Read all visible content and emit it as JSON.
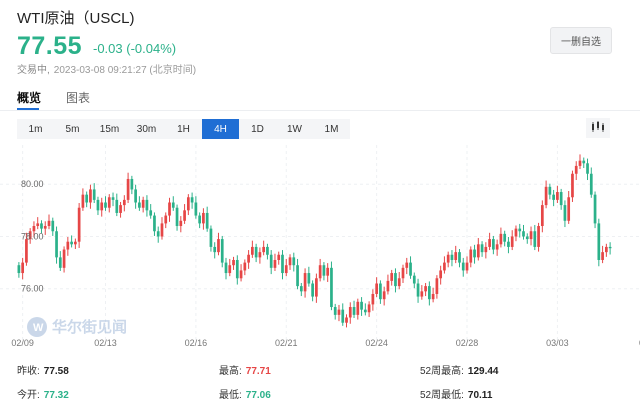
{
  "header": {
    "title": "WTI原油（USCL)",
    "price": "77.55",
    "change": "-0.03",
    "change_pct": "(-0.04%)",
    "status": "交易中,",
    "timestamp": "2023-03-08 09:21:27 (北京时间)",
    "remove_label": "一删自选"
  },
  "tabs": [
    {
      "label": "概览"
    },
    {
      "label": "图表"
    }
  ],
  "periods": [
    "1m",
    "5m",
    "15m",
    "30m",
    "1H",
    "4H",
    "1D",
    "1W",
    "1M"
  ],
  "active_period": "4H",
  "icons": {
    "chart_type": "candlestick-icon",
    "watermark": "wallstreetcn-logo"
  },
  "watermark": {
    "text": "华尔街见闻"
  },
  "colors": {
    "up": "#e64646",
    "down": "#2bb18a",
    "accent": "#1f6ed4"
  },
  "chart_data": {
    "type": "candlestick",
    "y_ticks": [
      "80.00",
      "78.00",
      "76.00"
    ],
    "y_tick_values": [
      80,
      78,
      76
    ],
    "ylim": [
      74.0,
      81.5
    ],
    "x_ticks": [
      "02/09",
      "02/13",
      "02/16",
      "02/21",
      "02/24",
      "02/28",
      "03/03",
      "03/0"
    ],
    "x_tick_index": [
      1,
      23,
      47,
      71,
      95,
      119,
      143,
      167
    ],
    "grid": true,
    "closes": [
      76.6,
      77.0,
      77.9,
      78.2,
      78.4,
      78.5,
      78.3,
      78.4,
      78.6,
      78.2,
      77.2,
      76.8,
      77.5,
      77.8,
      77.7,
      77.8,
      79.1,
      79.6,
      79.3,
      79.8,
      79.4,
      79.0,
      79.3,
      79.1,
      79.5,
      79.4,
      78.9,
      79.2,
      79.4,
      80.2,
      79.8,
      79.3,
      79.1,
      79.4,
      79.0,
      78.8,
      78.2,
      78.0,
      78.5,
      78.8,
      79.3,
      79.1,
      78.4,
      78.6,
      79.0,
      79.5,
      79.3,
      78.8,
      78.5,
      78.9,
      78.3,
      77.6,
      77.4,
      77.9,
      77.0,
      76.6,
      76.9,
      77.1,
      76.4,
      76.7,
      77.0,
      77.3,
      77.6,
      77.2,
      77.4,
      77.6,
      77.3,
      76.8,
      77.1,
      77.3,
      76.6,
      76.9,
      77.2,
      76.9,
      76.1,
      75.9,
      76.6,
      76.2,
      75.7,
      76.4,
      76.9,
      76.5,
      76.8,
      75.3,
      75.0,
      75.2,
      74.7,
      74.9,
      75.3,
      75.0,
      75.5,
      75.2,
      75.1,
      75.4,
      75.8,
      76.2,
      75.6,
      75.9,
      76.3,
      76.6,
      76.1,
      76.4,
      76.8,
      77.0,
      76.5,
      76.2,
      75.7,
      75.9,
      76.1,
      75.6,
      75.8,
      76.4,
      76.7,
      77.0,
      77.3,
      77.1,
      77.4,
      77.0,
      76.7,
      77.0,
      77.5,
      77.2,
      77.7,
      77.4,
      77.6,
      77.9,
      77.5,
      77.7,
      78.1,
      77.8,
      77.6,
      78.0,
      78.3,
      78.2,
      78.0,
      77.9,
      78.2,
      77.6,
      78.4,
      79.2,
      79.9,
      79.6,
      79.4,
      79.7,
      79.2,
      78.6,
      79.5,
      80.4,
      80.7,
      80.9,
      80.8,
      80.4,
      79.6,
      78.5,
      77.1,
      77.4,
      77.6,
      77.55
    ]
  },
  "stats": [
    {
      "label": "昨收:",
      "value": "77.58"
    },
    {
      "label": "今开:",
      "value": "77.32"
    },
    {
      "label": "最高:",
      "value": "77.71"
    },
    {
      "label": "最低:",
      "value": "77.06"
    },
    {
      "label": "52周最高:",
      "value": "129.44"
    },
    {
      "label": "52周最低:",
      "value": "70.11"
    }
  ]
}
